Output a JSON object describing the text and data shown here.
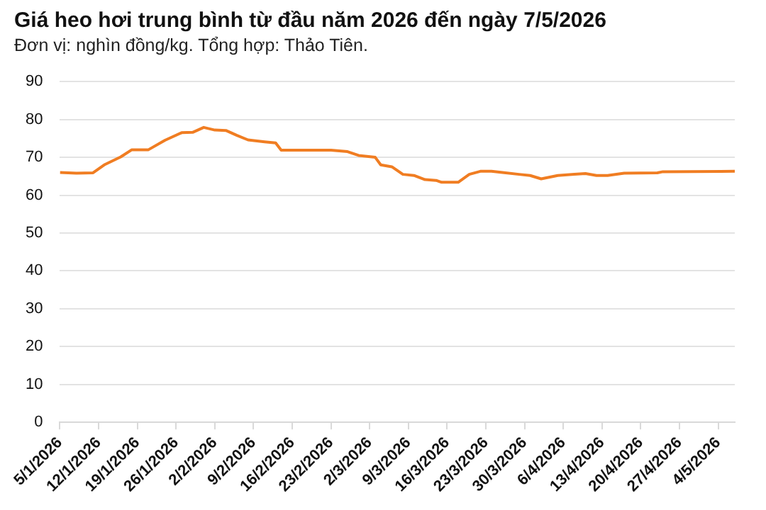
{
  "chart_data": {
    "type": "line",
    "title": "Giá heo hơi trung bình từ đầu năm 2026 đến ngày 7/5/2026",
    "subtitle": "Đơn vị: nghìn đồng/kg. Tổng hợp: Thảo Tiên.",
    "x": [
      "2026-01-05",
      "2026-01-08",
      "2026-01-11",
      "2026-01-13",
      "2026-01-16",
      "2026-01-18",
      "2026-01-21",
      "2026-01-24",
      "2026-01-27",
      "2026-01-29",
      "2026-01-31",
      "2026-02-02",
      "2026-02-04",
      "2026-02-06",
      "2026-02-08",
      "2026-02-11",
      "2026-02-13",
      "2026-02-14",
      "2026-02-23",
      "2026-02-26",
      "2026-02-28",
      "2026-03-03",
      "2026-03-04",
      "2026-03-06",
      "2026-03-08",
      "2026-03-10",
      "2026-03-12",
      "2026-03-14",
      "2026-03-15",
      "2026-03-18",
      "2026-03-20",
      "2026-03-22",
      "2026-03-24",
      "2026-03-26",
      "2026-03-29",
      "2026-03-31",
      "2026-04-02",
      "2026-04-05",
      "2026-04-08",
      "2026-04-10",
      "2026-04-12",
      "2026-04-14",
      "2026-04-17",
      "2026-04-23",
      "2026-04-24",
      "2026-05-07"
    ],
    "series": [
      {
        "color": "#f07d22",
        "values": [
          66.0,
          65.8,
          65.9,
          68.0,
          70.1,
          72.0,
          72.0,
          74.5,
          76.5,
          76.6,
          77.9,
          77.2,
          77.1,
          75.8,
          74.6,
          74.1,
          73.8,
          71.9,
          71.9,
          71.5,
          70.5,
          70.0,
          68.0,
          67.5,
          65.5,
          65.2,
          64.1,
          63.9,
          63.4,
          63.4,
          65.5,
          66.3,
          66.3,
          66.0,
          65.5,
          65.2,
          64.3,
          65.2,
          65.5,
          65.7,
          65.2,
          65.2,
          65.8,
          65.9,
          66.2,
          66.3
        ]
      }
    ],
    "xlim": [
      "2026-01-05",
      "2026-05-07"
    ],
    "xticks": [
      {
        "value": "2026-01-05",
        "label": "5/1/2026"
      },
      {
        "value": "2026-01-12",
        "label": "12/1/2026"
      },
      {
        "value": "2026-01-19",
        "label": "19/1/2026"
      },
      {
        "value": "2026-01-26",
        "label": "26/1/2026"
      },
      {
        "value": "2026-02-02",
        "label": "2/2/2026"
      },
      {
        "value": "2026-02-09",
        "label": "9/2/2026"
      },
      {
        "value": "2026-02-16",
        "label": "16/2/2026"
      },
      {
        "value": "2026-02-23",
        "label": "23/2/2026"
      },
      {
        "value": "2026-03-02",
        "label": "2/3/2026"
      },
      {
        "value": "2026-03-09",
        "label": "9/3/2026"
      },
      {
        "value": "2026-03-16",
        "label": "16/3/2026"
      },
      {
        "value": "2026-03-23",
        "label": "23/3/2026"
      },
      {
        "value": "2026-03-30",
        "label": "30/3/2026"
      },
      {
        "value": "2026-04-06",
        "label": "6/4/2026"
      },
      {
        "value": "2026-04-13",
        "label": "13/4/2026"
      },
      {
        "value": "2026-04-20",
        "label": "20/4/2026"
      },
      {
        "value": "2026-04-27",
        "label": "27/4/2026"
      },
      {
        "value": "2026-05-04",
        "label": "4/5/2026"
      }
    ],
    "ylim": [
      0,
      90
    ],
    "yticks": [
      0,
      10,
      20,
      30,
      40,
      50,
      60,
      70,
      80,
      90
    ],
    "grid": "y",
    "legend": false,
    "marker": "none",
    "line_style": "solid"
  }
}
